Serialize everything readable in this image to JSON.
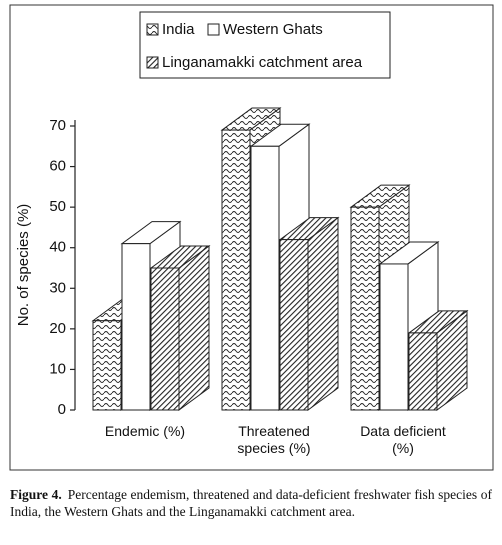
{
  "chart_data": {
    "type": "bar3d",
    "y_label": "No. of species (%)",
    "categories": [
      "Endemic (%)",
      "Threatened species (%)",
      "Data deficient (%)"
    ],
    "series": [
      {
        "name": "India",
        "color": "#ffffff",
        "pattern": "wave",
        "values": [
          22,
          69,
          50
        ]
      },
      {
        "name": "Western Ghats",
        "color": "#ffffff",
        "pattern": "none",
        "values": [
          41,
          65,
          36
        ]
      },
      {
        "name": "Linganamakki catchment area",
        "color": "#ffffff",
        "pattern": "hatch",
        "values": [
          35,
          42,
          19
        ]
      }
    ],
    "ylim": [
      0,
      70
    ],
    "yticks": [
      0,
      10,
      20,
      30,
      40,
      50,
      60,
      70
    ],
    "legend": "top",
    "caption_label": "Figure 4.",
    "caption": "Percentage endemism, threatened and data-deficient freshwater fish species of India, the Western Ghats and the Linganamakki catchment area."
  }
}
